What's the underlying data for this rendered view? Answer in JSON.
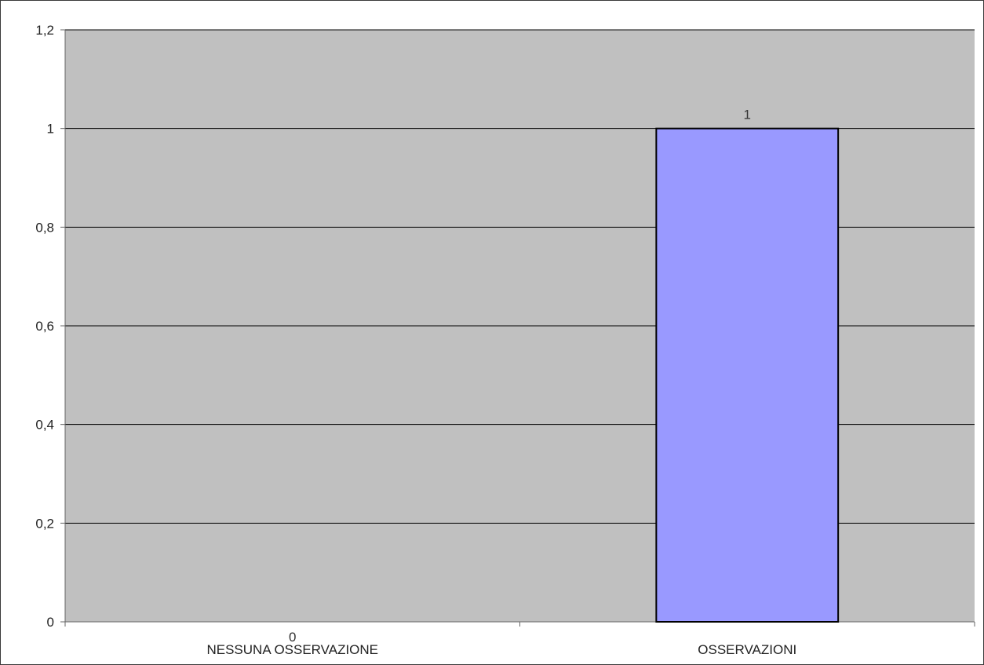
{
  "chart_data": {
    "type": "bar",
    "title": "",
    "xlabel": "",
    "ylabel": "",
    "categories": [
      "NESSUNA OSSERVAZIONE",
      "OSSERVAZIONI"
    ],
    "values": [
      0,
      1
    ],
    "data_labels": [
      "0",
      "1"
    ],
    "ylim": [
      0,
      1.2
    ],
    "yticks": [
      0,
      0.2,
      0.4,
      0.6,
      0.8,
      1,
      1.2
    ],
    "ytick_labels": [
      "0",
      "0,2",
      "0,4",
      "0,6",
      "0,8",
      "1",
      "1,2"
    ],
    "grid": true,
    "legend": "none",
    "colors": {
      "plot_background": "#c0c0c0",
      "bar_fill": "#9999ff",
      "bar_stroke": "#000000",
      "gridline": "#000000"
    }
  }
}
